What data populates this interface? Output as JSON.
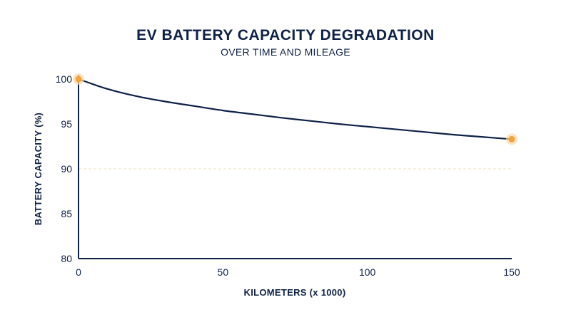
{
  "chart_data": {
    "type": "line",
    "title": "EV BATTERY CAPACITY DEGRADATION",
    "subtitle": "OVER TIME AND MILEAGE",
    "xlabel": "KILOMETERS (x 1000)",
    "ylabel": "BATTERY CAPACITY (%)",
    "xlim": [
      0,
      150
    ],
    "ylim": [
      80,
      100
    ],
    "xticks": [
      "0",
      "50",
      "100",
      "150"
    ],
    "yticks": [
      "80",
      "85",
      "90",
      "95",
      "100"
    ],
    "reference_line": {
      "y": 90,
      "style": "dashed"
    },
    "series": [
      {
        "x": [
          0,
          10,
          20,
          30,
          40,
          50,
          60,
          70,
          80,
          90,
          100,
          110,
          120,
          130,
          140,
          150
        ],
        "y": [
          100,
          98.9,
          98.1,
          97.5,
          97.0,
          96.5,
          96.1,
          95.7,
          95.35,
          95.0,
          94.7,
          94.4,
          94.1,
          93.8,
          93.55,
          93.3
        ]
      }
    ],
    "highlight_points": [
      {
        "x": 0,
        "y": 100
      },
      {
        "x": 150,
        "y": 93.3
      }
    ],
    "grid": false,
    "legend": "none",
    "colors": {
      "line": "#0f2147",
      "text": "#0f2147",
      "axis": "#0f2147",
      "reference": "#e9e3b8",
      "marker": "#f2a33a",
      "marker_halo": "#f9d9a8"
    }
  }
}
